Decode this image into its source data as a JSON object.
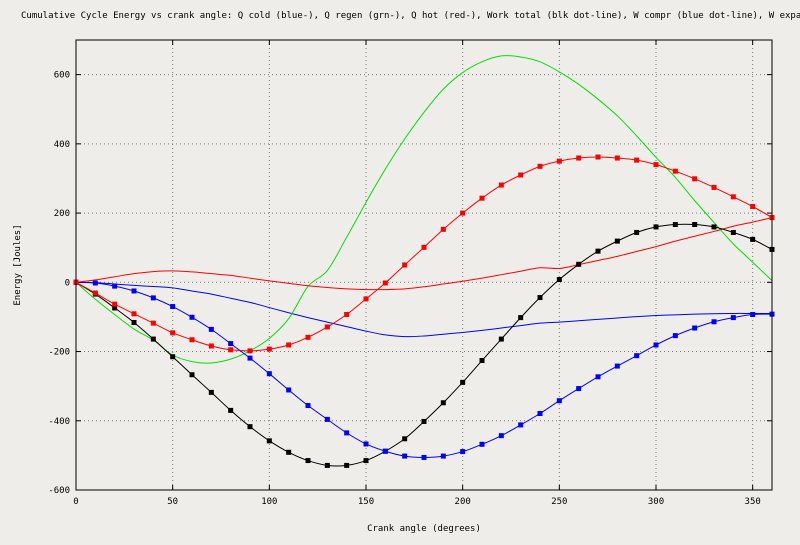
{
  "chart_data": {
    "type": "line",
    "title": "Cumulative Cycle Energy vs crank angle: Q cold (blue-), Q regen (grn-), Q hot (red-), Work total (blk dot-line), W compr (blue dot-line), W expan (red dot-line)",
    "xlabel": "Crank angle (degrees)",
    "ylabel": "Energy [Joules]",
    "xlim": [
      0,
      360
    ],
    "ylim": [
      -600,
      700
    ],
    "xticks": [
      0,
      50,
      100,
      150,
      200,
      250,
      300,
      350
    ],
    "yticks": [
      -600,
      -400,
      -200,
      0,
      200,
      400,
      600
    ],
    "grid": true,
    "x": [
      0,
      10,
      20,
      30,
      40,
      50,
      60,
      70,
      80,
      90,
      100,
      110,
      120,
      130,
      140,
      150,
      160,
      170,
      180,
      190,
      200,
      210,
      220,
      230,
      240,
      250,
      260,
      270,
      280,
      290,
      300,
      310,
      320,
      330,
      340,
      350,
      360
    ],
    "series": [
      {
        "name": "Q cold",
        "color": "#0000ff",
        "markers": false,
        "values": [
          0,
          -1,
          -5,
          -9,
          -12,
          -16,
          -25,
          -34,
          -46,
          -58,
          -73,
          -88,
          -102,
          -115,
          -128,
          -141,
          -152,
          -157,
          -155,
          -150,
          -145,
          -139,
          -132,
          -125,
          -118,
          -115,
          -111,
          -107,
          -103,
          -99,
          -96,
          -94,
          -92,
          -91,
          -90,
          -90,
          -90
        ]
      },
      {
        "name": "Q regen",
        "color": "#00e000",
        "markers": false,
        "values": [
          0,
          -49,
          -93,
          -135,
          -167,
          -210,
          -229,
          -233,
          -222,
          -198,
          -162,
          -105,
          -12,
          34,
          130,
          231,
          327,
          414,
          491,
          558,
          606,
          637,
          654,
          651,
          637,
          608,
          572,
          529,
          481,
          423,
          361,
          303,
          236,
          173,
          111,
          58,
          5
        ]
      },
      {
        "name": "Q hot",
        "color": "#ff0000",
        "markers": false,
        "values": [
          0,
          7,
          16,
          25,
          31,
          33,
          30,
          25,
          20,
          12,
          4,
          -3,
          -10,
          -15,
          -19,
          -21,
          -21,
          -19,
          -13,
          -5,
          3,
          12,
          22,
          32,
          42,
          40,
          51,
          63,
          75,
          89,
          103,
          119,
          133,
          147,
          162,
          174,
          187
        ]
      },
      {
        "name": "Work total",
        "color": "#000000",
        "markers": true,
        "values": [
          0,
          -34,
          -74,
          -116,
          -164,
          -215,
          -267,
          -318,
          -370,
          -417,
          -458,
          -491,
          -515,
          -529,
          -529,
          -515,
          -488,
          -452,
          -402,
          -348,
          -289,
          -226,
          -164,
          -102,
          -44,
          8,
          52,
          90,
          119,
          144,
          160,
          167,
          167,
          160,
          144,
          124,
          95
        ]
      },
      {
        "name": "W compr",
        "color": "#0000ff",
        "markers": true,
        "values": [
          0,
          -2,
          -11,
          -25,
          -45,
          -70,
          -101,
          -136,
          -177,
          -219,
          -264,
          -311,
          -356,
          -396,
          -435,
          -467,
          -488,
          -502,
          -506,
          -502,
          -489,
          -468,
          -443,
          -412,
          -379,
          -342,
          -307,
          -273,
          -242,
          -212,
          -181,
          -154,
          -132,
          -114,
          -102,
          -93,
          -92
        ]
      },
      {
        "name": "W expan",
        "color": "#ff0000",
        "markers": true,
        "values": [
          0,
          -31,
          -63,
          -91,
          -118,
          -146,
          -166,
          -184,
          -195,
          -198,
          -193,
          -181,
          -159,
          -129,
          -93,
          -48,
          -2,
          50,
          101,
          153,
          200,
          243,
          281,
          310,
          335,
          350,
          359,
          362,
          359,
          353,
          340,
          321,
          299,
          274,
          247,
          219,
          187
        ]
      }
    ]
  }
}
